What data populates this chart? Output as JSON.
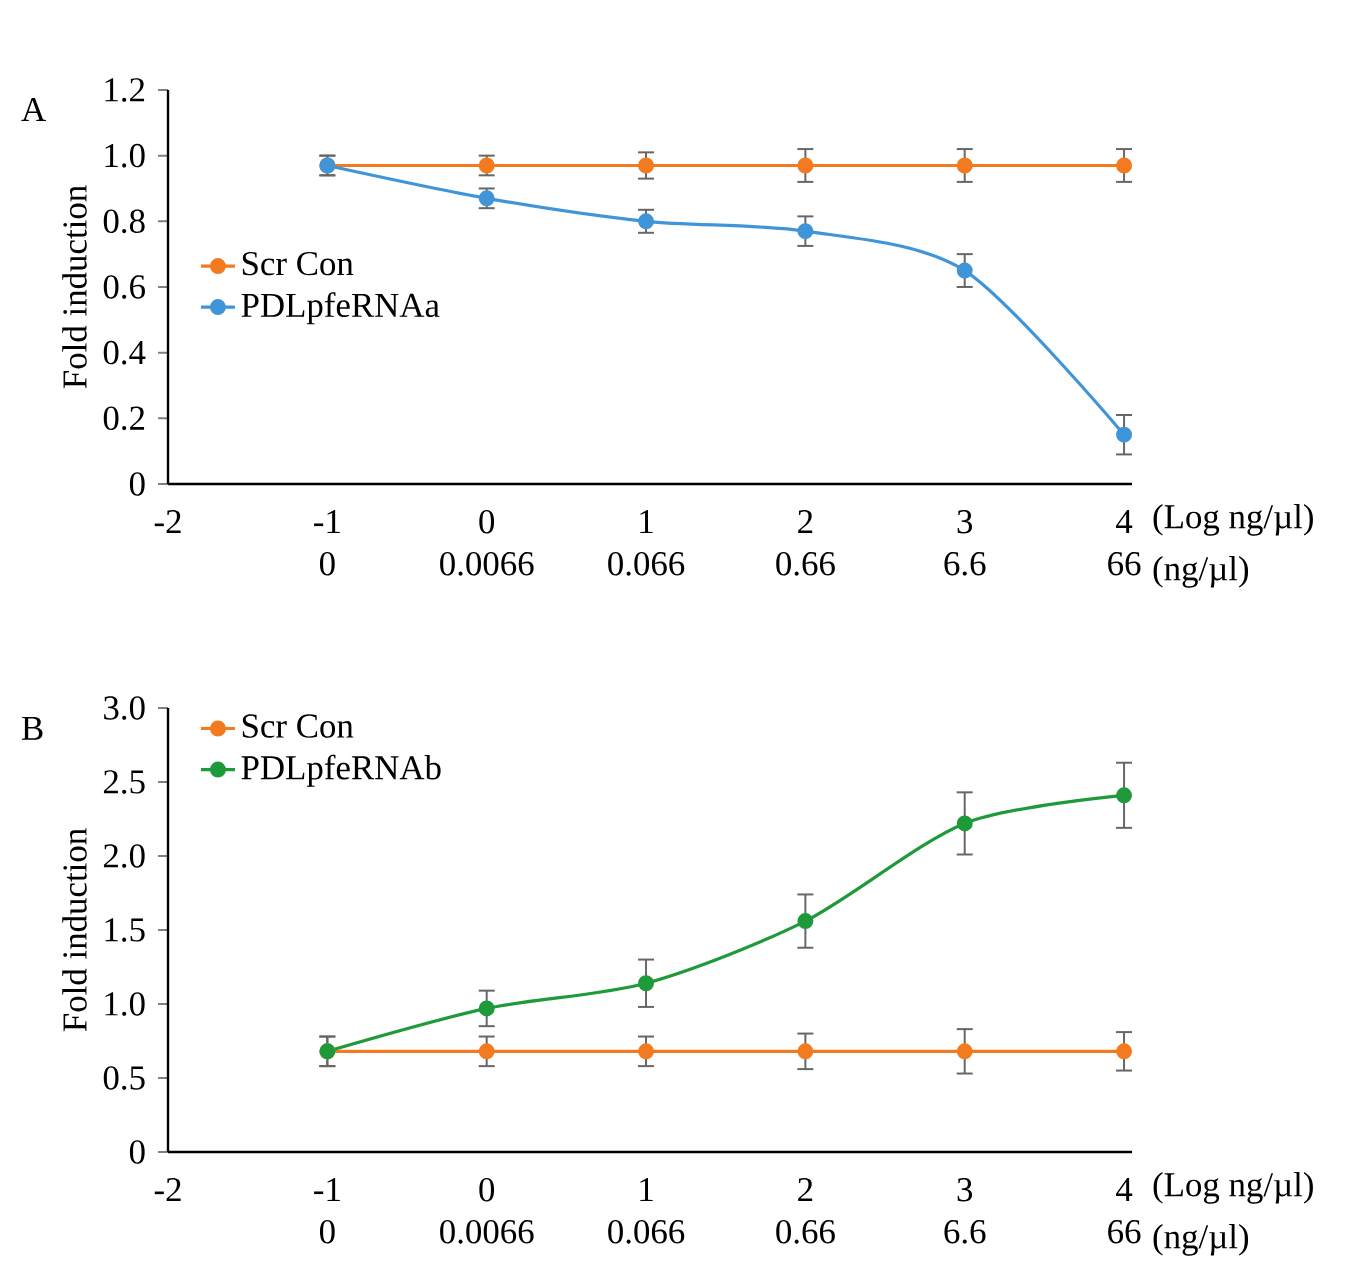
{
  "chart_data": [
    {
      "type": "line",
      "title": "A",
      "ylabel": "Fold induction",
      "xlabel": "(Log ng/µl)",
      "x2label": "(ng/µl)",
      "x": [
        -1,
        0,
        1,
        2,
        3,
        4
      ],
      "series": [
        {
          "name": "Scr Con",
          "color": "#f47a20",
          "values": [
            0.97,
            0.97,
            0.97,
            0.97,
            0.97,
            0.97
          ],
          "errors": [
            0.03,
            0.03,
            0.04,
            0.05,
            0.05,
            0.05
          ]
        },
        {
          "name": "PDLpfeRNAa",
          "color": "#3f95d8",
          "values": [
            0.97,
            0.87,
            0.8,
            0.77,
            0.65,
            0.15
          ],
          "errors": [
            0.03,
            0.03,
            0.035,
            0.045,
            0.05,
            0.06
          ]
        }
      ],
      "xlim": [
        -2,
        4.05
      ],
      "xticks": [
        -2,
        -1,
        0,
        1,
        2,
        3,
        4
      ],
      "x2lim": [
        6.6e-05,
        74
      ],
      "x2ticks": [
        {
          "value": 0.00066,
          "label": "0"
        },
        0.0066,
        0.066,
        0.66,
        6.6,
        66
      ],
      "ylim": [
        0,
        1.2
      ],
      "yticks": [
        0,
        0.2,
        0.4,
        0.6,
        0.8,
        {
          "value": 1,
          "label": "1.0"
        },
        1.2
      ],
      "log": "x2",
      "legend": "left",
      "marker": "circle",
      "line_style": "solid",
      "grid": false
    },
    {
      "type": "line",
      "title": "B",
      "ylabel": "Fold induction",
      "xlabel": "(Log ng/µl)",
      "x2label": "(ng/µl)",
      "x": [
        -1,
        0,
        1,
        2,
        3,
        4
      ],
      "series": [
        {
          "name": "Scr Con",
          "color": "#f47a20",
          "values": [
            0.68,
            0.68,
            0.68,
            0.68,
            0.68,
            0.68
          ],
          "errors": [
            0.1,
            0.1,
            0.1,
            0.12,
            0.15,
            0.13
          ]
        },
        {
          "name": "PDLpfeRNAb",
          "color": "#1f9a3a",
          "values": [
            0.68,
            0.97,
            1.14,
            1.56,
            2.22,
            2.41
          ],
          "errors": [
            0.1,
            0.12,
            0.16,
            0.18,
            0.21,
            0.22
          ]
        }
      ],
      "xlim": [
        -2,
        4.05
      ],
      "xticks": [
        -2,
        -1,
        0,
        1,
        2,
        3,
        4
      ],
      "x2lim": [
        6.6e-05,
        74
      ],
      "x2ticks": [
        {
          "value": 0.00066,
          "label": "0"
        },
        0.0066,
        0.066,
        0.66,
        6.6,
        66
      ],
      "ylim": [
        0,
        3
      ],
      "yticks": [
        0,
        0.5,
        {
          "value": 1,
          "label": "1.0"
        },
        1.5,
        {
          "value": 2,
          "label": "2.0"
        },
        2.5,
        {
          "value": 3,
          "label": "3.0"
        }
      ],
      "log": "x2",
      "legend": "top left",
      "marker": "circle",
      "line_style": "solid",
      "grid": false
    }
  ]
}
